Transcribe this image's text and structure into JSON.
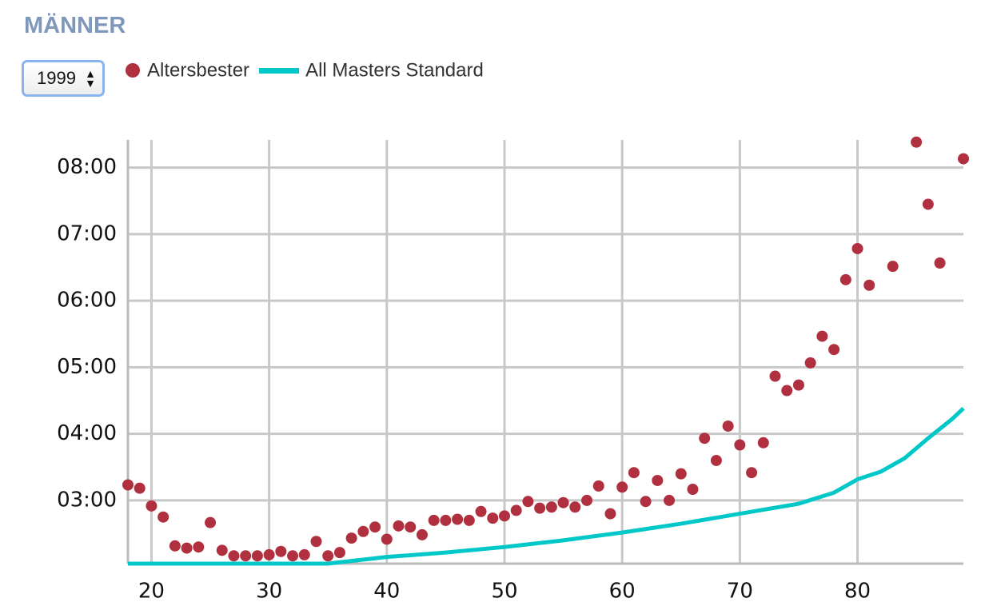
{
  "chart_data": {
    "type": "scatter",
    "title": "MÄNNER",
    "year_select": "1999",
    "xlim": [
      18,
      89
    ],
    "xticks": [
      20,
      30,
      40,
      50,
      60,
      70,
      80
    ],
    "ylim": [
      123,
      505
    ],
    "yticks": [
      {
        "value": 180,
        "label": "03:00"
      },
      {
        "value": 240,
        "label": "04:00"
      },
      {
        "value": 300,
        "label": "05:00"
      },
      {
        "value": 360,
        "label": "06:00"
      },
      {
        "value": 420,
        "label": "07:00"
      },
      {
        "value": 480,
        "label": "08:00"
      }
    ],
    "grid": true,
    "series": [
      {
        "name": "Altersbester",
        "type": "scatter",
        "color": "#b0303f",
        "x": [
          18,
          19,
          20,
          21,
          22,
          23,
          24,
          25,
          26,
          27,
          28,
          29,
          30,
          31,
          32,
          33,
          34,
          35,
          36,
          37,
          38,
          39,
          40,
          41,
          42,
          43,
          44,
          45,
          46,
          47,
          48,
          49,
          50,
          51,
          52,
          53,
          54,
          55,
          56,
          57,
          58,
          59,
          60,
          61,
          62,
          63,
          64,
          65,
          66,
          67,
          68,
          69,
          70,
          71,
          72,
          73,
          74,
          75,
          76,
          77,
          78,
          79,
          80,
          81,
          83,
          85,
          86,
          87,
          89
        ],
        "values": [
          194,
          191,
          175,
          165,
          139,
          137,
          138,
          160,
          135,
          130,
          130,
          130,
          131,
          134,
          130,
          131,
          143,
          130,
          133,
          146,
          152,
          156,
          145,
          157,
          156,
          149,
          162,
          162,
          163,
          162,
          170,
          164,
          166,
          171,
          179,
          173,
          174,
          178,
          174,
          180,
          193,
          168,
          192,
          205,
          179,
          198,
          180,
          204,
          190,
          236,
          216,
          247,
          230,
          205,
          232,
          292,
          279,
          284,
          304,
          328,
          316,
          379,
          407,
          374,
          391,
          503,
          447,
          394,
          488
        ]
      },
      {
        "name": "All Masters Standard",
        "type": "line",
        "color": "#00c8c8",
        "x": [
          18,
          35,
          40,
          45,
          50,
          55,
          60,
          65,
          70,
          75,
          78,
          80,
          82,
          84,
          86,
          88,
          89
        ],
        "values": [
          123,
          123,
          129,
          133,
          138,
          144,
          151,
          159,
          168,
          177,
          187,
          199,
          206,
          218,
          236,
          253,
          263
        ]
      }
    ]
  }
}
